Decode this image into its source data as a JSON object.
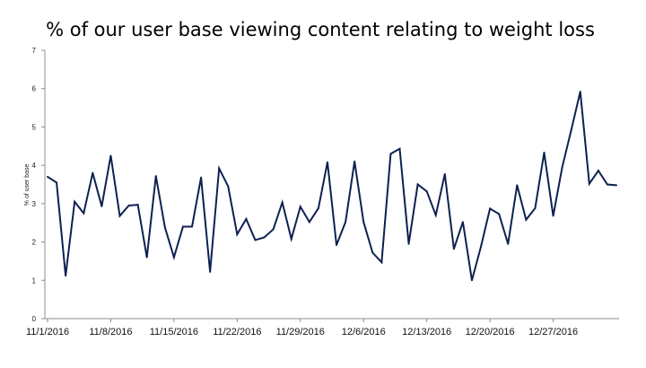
{
  "chart_data": {
    "type": "line",
    "title": "% of our user base viewing content relating to weight loss",
    "xlabel": "",
    "ylabel": "% of user base",
    "ylim": [
      0,
      7
    ],
    "yticks": [
      0,
      1,
      2,
      3,
      4,
      5,
      6,
      7
    ],
    "grid": false,
    "legend": "none",
    "x": [
      "11/1/2016",
      "11/2/2016",
      "11/3/2016",
      "11/4/2016",
      "11/5/2016",
      "11/6/2016",
      "11/7/2016",
      "11/8/2016",
      "11/9/2016",
      "11/10/2016",
      "11/11/2016",
      "11/12/2016",
      "11/13/2016",
      "11/14/2016",
      "11/15/2016",
      "11/16/2016",
      "11/17/2016",
      "11/18/2016",
      "11/19/2016",
      "11/20/2016",
      "11/21/2016",
      "11/22/2016",
      "11/23/2016",
      "11/24/2016",
      "11/25/2016",
      "11/26/2016",
      "11/27/2016",
      "11/28/2016",
      "11/29/2016",
      "11/30/2016",
      "12/1/2016",
      "12/2/2016",
      "12/3/2016",
      "12/4/2016",
      "12/5/2016",
      "12/6/2016",
      "12/7/2016",
      "12/8/2016",
      "12/9/2016",
      "12/10/2016",
      "12/11/2016",
      "12/12/2016",
      "12/13/2016",
      "12/14/2016",
      "12/15/2016",
      "12/16/2016",
      "12/17/2016",
      "12/18/2016",
      "12/19/2016",
      "12/20/2016",
      "12/21/2016",
      "12/22/2016",
      "12/23/2016",
      "12/24/2016",
      "12/25/2016",
      "12/26/2016",
      "12/27/2016",
      "12/28/2016",
      "12/29/2016",
      "12/30/2016",
      "12/31/2016",
      "1/1/2017",
      "1/2/2017",
      "1/3/2017"
    ],
    "xtick_labels": [
      "11/1/2016",
      "11/8/2016",
      "11/15/2016",
      "11/22/2016",
      "11/29/2016",
      "12/6/2016",
      "12/13/2016",
      "12/20/2016",
      "12/27/2016"
    ],
    "series": [
      {
        "color": "#0d2150",
        "values": [
          3.7,
          3.55,
          1.12,
          3.05,
          2.75,
          3.8,
          2.93,
          4.25,
          2.68,
          2.95,
          2.97,
          1.6,
          3.72,
          2.38,
          1.6,
          2.4,
          2.4,
          3.68,
          1.22,
          3.92,
          3.45,
          2.2,
          2.6,
          2.05,
          2.12,
          2.33,
          3.03,
          2.08,
          2.92,
          2.52,
          2.88,
          4.08,
          1.92,
          2.52,
          4.1,
          2.52,
          1.72,
          1.47,
          4.3,
          4.43,
          1.95,
          3.5,
          3.32,
          2.7,
          3.77,
          1.82,
          2.52,
          1.0,
          1.88,
          2.87,
          2.73,
          1.95,
          3.48,
          2.58,
          2.88,
          4.33,
          2.68,
          3.95,
          4.92,
          5.92,
          3.52,
          3.86,
          3.5,
          3.48
        ]
      }
    ]
  }
}
